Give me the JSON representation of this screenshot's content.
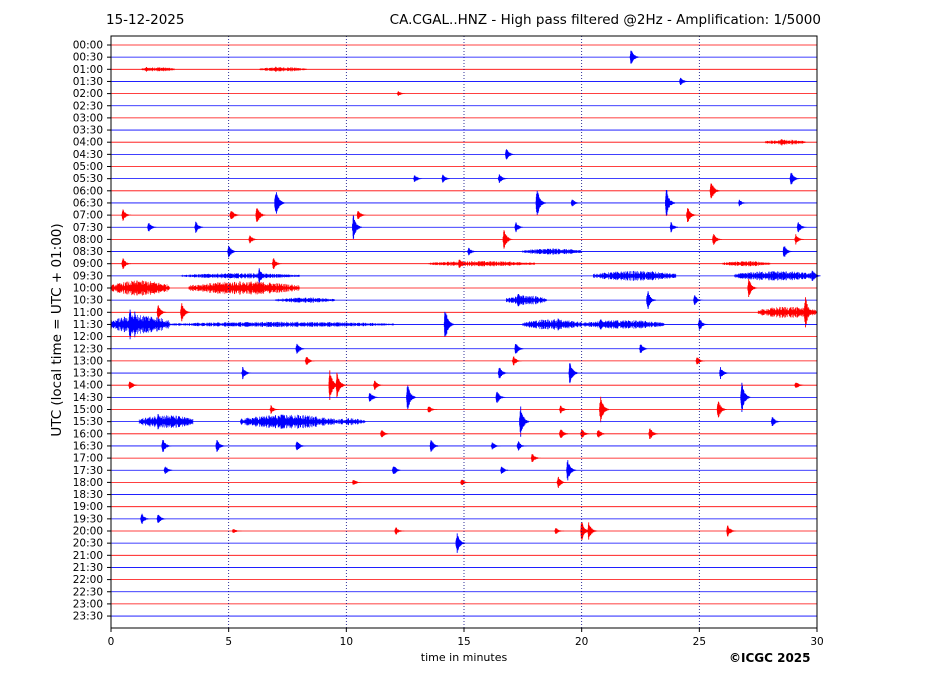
{
  "header": {
    "date": "15-12-2025",
    "title": "CA.CGAL..HNZ - High pass filtered @2Hz - Amplification: 1/5000"
  },
  "footer": {
    "copyright": "©ICGC 2025"
  },
  "chart_data": {
    "type": "line",
    "title": "CA.CGAL..HNZ - High pass filtered @2Hz - Amplification: 1/5000",
    "date": "15-12-2025",
    "xlabel": "time in minutes",
    "ylabel": "UTC (local time = UTC + 01:00)",
    "xlim": [
      0,
      30
    ],
    "x_ticks": [
      0,
      5,
      10,
      15,
      20,
      25,
      30
    ],
    "x_grid": "dotted vertical lines every 5 minutes",
    "row_labels": [
      "00:00",
      "00:30",
      "01:00",
      "01:30",
      "02:00",
      "02:30",
      "03:00",
      "03:30",
      "04:00",
      "04:30",
      "05:00",
      "05:30",
      "06:00",
      "06:30",
      "07:00",
      "07:30",
      "08:00",
      "08:30",
      "09:00",
      "09:30",
      "10:00",
      "10:30",
      "11:00",
      "11:30",
      "12:00",
      "12:30",
      "13:00",
      "13:30",
      "14:00",
      "14:30",
      "15:00",
      "15:30",
      "16:00",
      "16:30",
      "17:00",
      "17:30",
      "18:00",
      "18:30",
      "19:00",
      "19:30",
      "20:00",
      "20:30",
      "21:00",
      "21:30",
      "22:00",
      "22:30",
      "23:00",
      "23:30"
    ],
    "row_colors": [
      "#ff0000",
      "#0000ff"
    ],
    "events": [
      {
        "row": "00:30",
        "t": 22.1,
        "amp": 0.9
      },
      {
        "row": "01:00",
        "t": 1.5,
        "amp": 0.3
      },
      {
        "row": "01:00",
        "t": 7.0,
        "amp": 0.3
      },
      {
        "row": "01:30",
        "t": 24.2,
        "amp": 0.5
      },
      {
        "row": "02:00",
        "t": 12.2,
        "amp": 0.3
      },
      {
        "row": "04:00",
        "t": 28.5,
        "amp": 0.4
      },
      {
        "row": "04:30",
        "t": 16.8,
        "amp": 0.7
      },
      {
        "row": "05:30",
        "t": 12.9,
        "amp": 0.5
      },
      {
        "row": "05:30",
        "t": 14.1,
        "amp": 0.5
      },
      {
        "row": "05:30",
        "t": 16.5,
        "amp": 0.6
      },
      {
        "row": "05:30",
        "t": 28.9,
        "amp": 0.8
      },
      {
        "row": "06:00",
        "t": 25.5,
        "amp": 1.2
      },
      {
        "row": "06:30",
        "t": 7.0,
        "amp": 1.8
      },
      {
        "row": "06:30",
        "t": 18.1,
        "amp": 1.9
      },
      {
        "row": "06:30",
        "t": 19.6,
        "amp": 0.5
      },
      {
        "row": "06:30",
        "t": 23.6,
        "amp": 1.8
      },
      {
        "row": "06:30",
        "t": 26.7,
        "amp": 0.4
      },
      {
        "row": "07:00",
        "t": 0.5,
        "amp": 0.7
      },
      {
        "row": "07:00",
        "t": 5.1,
        "amp": 0.8
      },
      {
        "row": "07:00",
        "t": 6.2,
        "amp": 1.1
      },
      {
        "row": "07:00",
        "t": 10.5,
        "amp": 0.6
      },
      {
        "row": "07:00",
        "t": 24.5,
        "amp": 1.0
      },
      {
        "row": "07:30",
        "t": 1.6,
        "amp": 0.6
      },
      {
        "row": "07:30",
        "t": 3.6,
        "amp": 0.7
      },
      {
        "row": "07:30",
        "t": 10.3,
        "amp": 1.4
      },
      {
        "row": "07:30",
        "t": 17.2,
        "amp": 0.6
      },
      {
        "row": "07:30",
        "t": 23.8,
        "amp": 0.6
      },
      {
        "row": "07:30",
        "t": 29.2,
        "amp": 0.7
      },
      {
        "row": "08:00",
        "t": 5.9,
        "amp": 0.5
      },
      {
        "row": "08:00",
        "t": 16.7,
        "amp": 1.2
      },
      {
        "row": "08:00",
        "t": 25.6,
        "amp": 0.7
      },
      {
        "row": "08:00",
        "t": 29.1,
        "amp": 0.6
      },
      {
        "row": "08:30",
        "t": 5.0,
        "amp": 0.8
      },
      {
        "row": "08:30",
        "t": 15.2,
        "amp": 0.5
      },
      {
        "row": "08:30",
        "t": 28.6,
        "amp": 0.8
      },
      {
        "row": "09:00",
        "t": 0.5,
        "amp": 0.7
      },
      {
        "row": "09:00",
        "t": 6.9,
        "amp": 0.7
      },
      {
        "row": "09:00",
        "t": 14.8,
        "amp": 0.6
      },
      {
        "row": "09:30",
        "t": 6.3,
        "amp": 0.9
      },
      {
        "row": "09:30",
        "t": 23.0,
        "amp": 0.6
      },
      {
        "row": "09:30",
        "t": 29.8,
        "amp": 0.8
      },
      {
        "row": "10:00",
        "t": 1.2,
        "amp": 0.9
      },
      {
        "row": "10:00",
        "t": 6.3,
        "amp": 0.9
      },
      {
        "row": "10:00",
        "t": 27.1,
        "amp": 1.1
      },
      {
        "row": "10:30",
        "t": 17.3,
        "amp": 0.9
      },
      {
        "row": "10:30",
        "t": 22.8,
        "amp": 1.2
      },
      {
        "row": "10:30",
        "t": 24.8,
        "amp": 0.6
      },
      {
        "row": "11:00",
        "t": 2.0,
        "amp": 0.9
      },
      {
        "row": "11:00",
        "t": 3.0,
        "amp": 1.1
      },
      {
        "row": "11:00",
        "t": 29.5,
        "amp": 2.0
      },
      {
        "row": "11:30",
        "t": 0.8,
        "amp": 2.0
      },
      {
        "row": "11:30",
        "t": 1.0,
        "amp": 1.6
      },
      {
        "row": "11:30",
        "t": 14.2,
        "amp": 2.0
      },
      {
        "row": "11:30",
        "t": 19.0,
        "amp": 0.8
      },
      {
        "row": "11:30",
        "t": 20.8,
        "amp": 0.7
      },
      {
        "row": "11:30",
        "t": 25.0,
        "amp": 0.8
      },
      {
        "row": "12:30",
        "t": 7.9,
        "amp": 0.7
      },
      {
        "row": "12:30",
        "t": 17.2,
        "amp": 0.7
      },
      {
        "row": "12:30",
        "t": 22.5,
        "amp": 0.6
      },
      {
        "row": "13:00",
        "t": 8.3,
        "amp": 0.6
      },
      {
        "row": "13:00",
        "t": 17.1,
        "amp": 0.6
      },
      {
        "row": "13:00",
        "t": 24.9,
        "amp": 0.5
      },
      {
        "row": "13:30",
        "t": 5.6,
        "amp": 0.7
      },
      {
        "row": "13:30",
        "t": 16.5,
        "amp": 0.8
      },
      {
        "row": "13:30",
        "t": 19.5,
        "amp": 1.4
      },
      {
        "row": "13:30",
        "t": 25.9,
        "amp": 0.7
      },
      {
        "row": "14:00",
        "t": 0.8,
        "amp": 0.6
      },
      {
        "row": "14:00",
        "t": 9.3,
        "amp": 1.8
      },
      {
        "row": "14:00",
        "t": 9.6,
        "amp": 1.5
      },
      {
        "row": "14:00",
        "t": 11.2,
        "amp": 0.6
      },
      {
        "row": "14:00",
        "t": 29.1,
        "amp": 0.5
      },
      {
        "row": "14:30",
        "t": 11.0,
        "amp": 0.7
      },
      {
        "row": "14:30",
        "t": 12.6,
        "amp": 1.6
      },
      {
        "row": "14:30",
        "t": 16.4,
        "amp": 0.8
      },
      {
        "row": "14:30",
        "t": 26.8,
        "amp": 1.8
      },
      {
        "row": "15:00",
        "t": 6.8,
        "amp": 0.5
      },
      {
        "row": "15:00",
        "t": 13.5,
        "amp": 0.5
      },
      {
        "row": "15:00",
        "t": 19.1,
        "amp": 0.5
      },
      {
        "row": "15:00",
        "t": 20.8,
        "amp": 1.6
      },
      {
        "row": "15:00",
        "t": 25.8,
        "amp": 1.1
      },
      {
        "row": "15:30",
        "t": 2.0,
        "amp": 0.9
      },
      {
        "row": "15:30",
        "t": 7.3,
        "amp": 1.1
      },
      {
        "row": "15:30",
        "t": 17.4,
        "amp": 1.9
      },
      {
        "row": "15:30",
        "t": 28.1,
        "amp": 0.6
      },
      {
        "row": "16:00",
        "t": 11.5,
        "amp": 0.5
      },
      {
        "row": "16:00",
        "t": 19.1,
        "amp": 0.7
      },
      {
        "row": "16:00",
        "t": 20.0,
        "amp": 0.6
      },
      {
        "row": "16:00",
        "t": 20.7,
        "amp": 0.6
      },
      {
        "row": "16:00",
        "t": 22.9,
        "amp": 0.8
      },
      {
        "row": "16:30",
        "t": 2.2,
        "amp": 0.8
      },
      {
        "row": "16:30",
        "t": 4.5,
        "amp": 0.8
      },
      {
        "row": "16:30",
        "t": 7.9,
        "amp": 0.7
      },
      {
        "row": "16:30",
        "t": 13.6,
        "amp": 0.8
      },
      {
        "row": "16:30",
        "t": 16.2,
        "amp": 0.5
      },
      {
        "row": "16:30",
        "t": 17.3,
        "amp": 0.6
      },
      {
        "row": "17:00",
        "t": 17.9,
        "amp": 0.6
      },
      {
        "row": "17:30",
        "t": 2.3,
        "amp": 0.6
      },
      {
        "row": "17:30",
        "t": 12.0,
        "amp": 0.7
      },
      {
        "row": "17:30",
        "t": 16.6,
        "amp": 0.5
      },
      {
        "row": "17:30",
        "t": 19.4,
        "amp": 1.3
      },
      {
        "row": "18:00",
        "t": 10.3,
        "amp": 0.4
      },
      {
        "row": "18:00",
        "t": 14.9,
        "amp": 0.4
      },
      {
        "row": "18:00",
        "t": 19.0,
        "amp": 0.7
      },
      {
        "row": "19:30",
        "t": 1.3,
        "amp": 0.7
      },
      {
        "row": "19:30",
        "t": 2.0,
        "amp": 0.6
      },
      {
        "row": "20:00",
        "t": 5.2,
        "amp": 0.3
      },
      {
        "row": "20:00",
        "t": 12.1,
        "amp": 0.5
      },
      {
        "row": "20:00",
        "t": 18.9,
        "amp": 0.4
      },
      {
        "row": "20:00",
        "t": 20.0,
        "amp": 1.2
      },
      {
        "row": "20:00",
        "t": 20.3,
        "amp": 1.0
      },
      {
        "row": "20:00",
        "t": 26.2,
        "amp": 0.7
      },
      {
        "row": "20:30",
        "t": 14.7,
        "amp": 1.2
      }
    ],
    "noise_bursts": [
      {
        "row": "01:00",
        "start": 1.3,
        "end": 2.7,
        "amp": 0.25
      },
      {
        "row": "01:00",
        "start": 6.3,
        "end": 8.3,
        "amp": 0.25
      },
      {
        "row": "04:00",
        "start": 27.8,
        "end": 29.5,
        "amp": 0.3
      },
      {
        "row": "08:30",
        "start": 17.5,
        "end": 20.0,
        "amp": 0.35
      },
      {
        "row": "09:00",
        "start": 13.5,
        "end": 18.0,
        "amp": 0.3
      },
      {
        "row": "09:00",
        "start": 26.0,
        "end": 28.0,
        "amp": 0.3
      },
      {
        "row": "09:30",
        "start": 3.0,
        "end": 8.0,
        "amp": 0.3
      },
      {
        "row": "09:30",
        "start": 20.5,
        "end": 24.0,
        "amp": 0.55
      },
      {
        "row": "09:30",
        "start": 26.5,
        "end": 30.0,
        "amp": 0.55
      },
      {
        "row": "10:00",
        "start": 0.0,
        "end": 2.5,
        "amp": 0.85
      },
      {
        "row": "10:00",
        "start": 3.3,
        "end": 8.0,
        "amp": 0.75
      },
      {
        "row": "10:30",
        "start": 7.0,
        "end": 9.5,
        "amp": 0.3
      },
      {
        "row": "10:30",
        "start": 16.8,
        "end": 18.5,
        "amp": 0.55
      },
      {
        "row": "11:00",
        "start": 27.5,
        "end": 30.0,
        "amp": 0.65
      },
      {
        "row": "11:30",
        "start": 0.0,
        "end": 2.5,
        "amp": 1.1
      },
      {
        "row": "11:30",
        "start": 2.5,
        "end": 12.0,
        "amp": 0.3
      },
      {
        "row": "11:30",
        "start": 17.5,
        "end": 20.0,
        "amp": 0.6
      },
      {
        "row": "11:30",
        "start": 20.0,
        "end": 23.5,
        "amp": 0.5
      },
      {
        "row": "15:30",
        "start": 1.2,
        "end": 3.5,
        "amp": 0.75
      },
      {
        "row": "15:30",
        "start": 5.5,
        "end": 9.5,
        "amp": 0.8
      },
      {
        "row": "15:30",
        "start": 9.5,
        "end": 10.8,
        "amp": 0.4
      }
    ]
  }
}
